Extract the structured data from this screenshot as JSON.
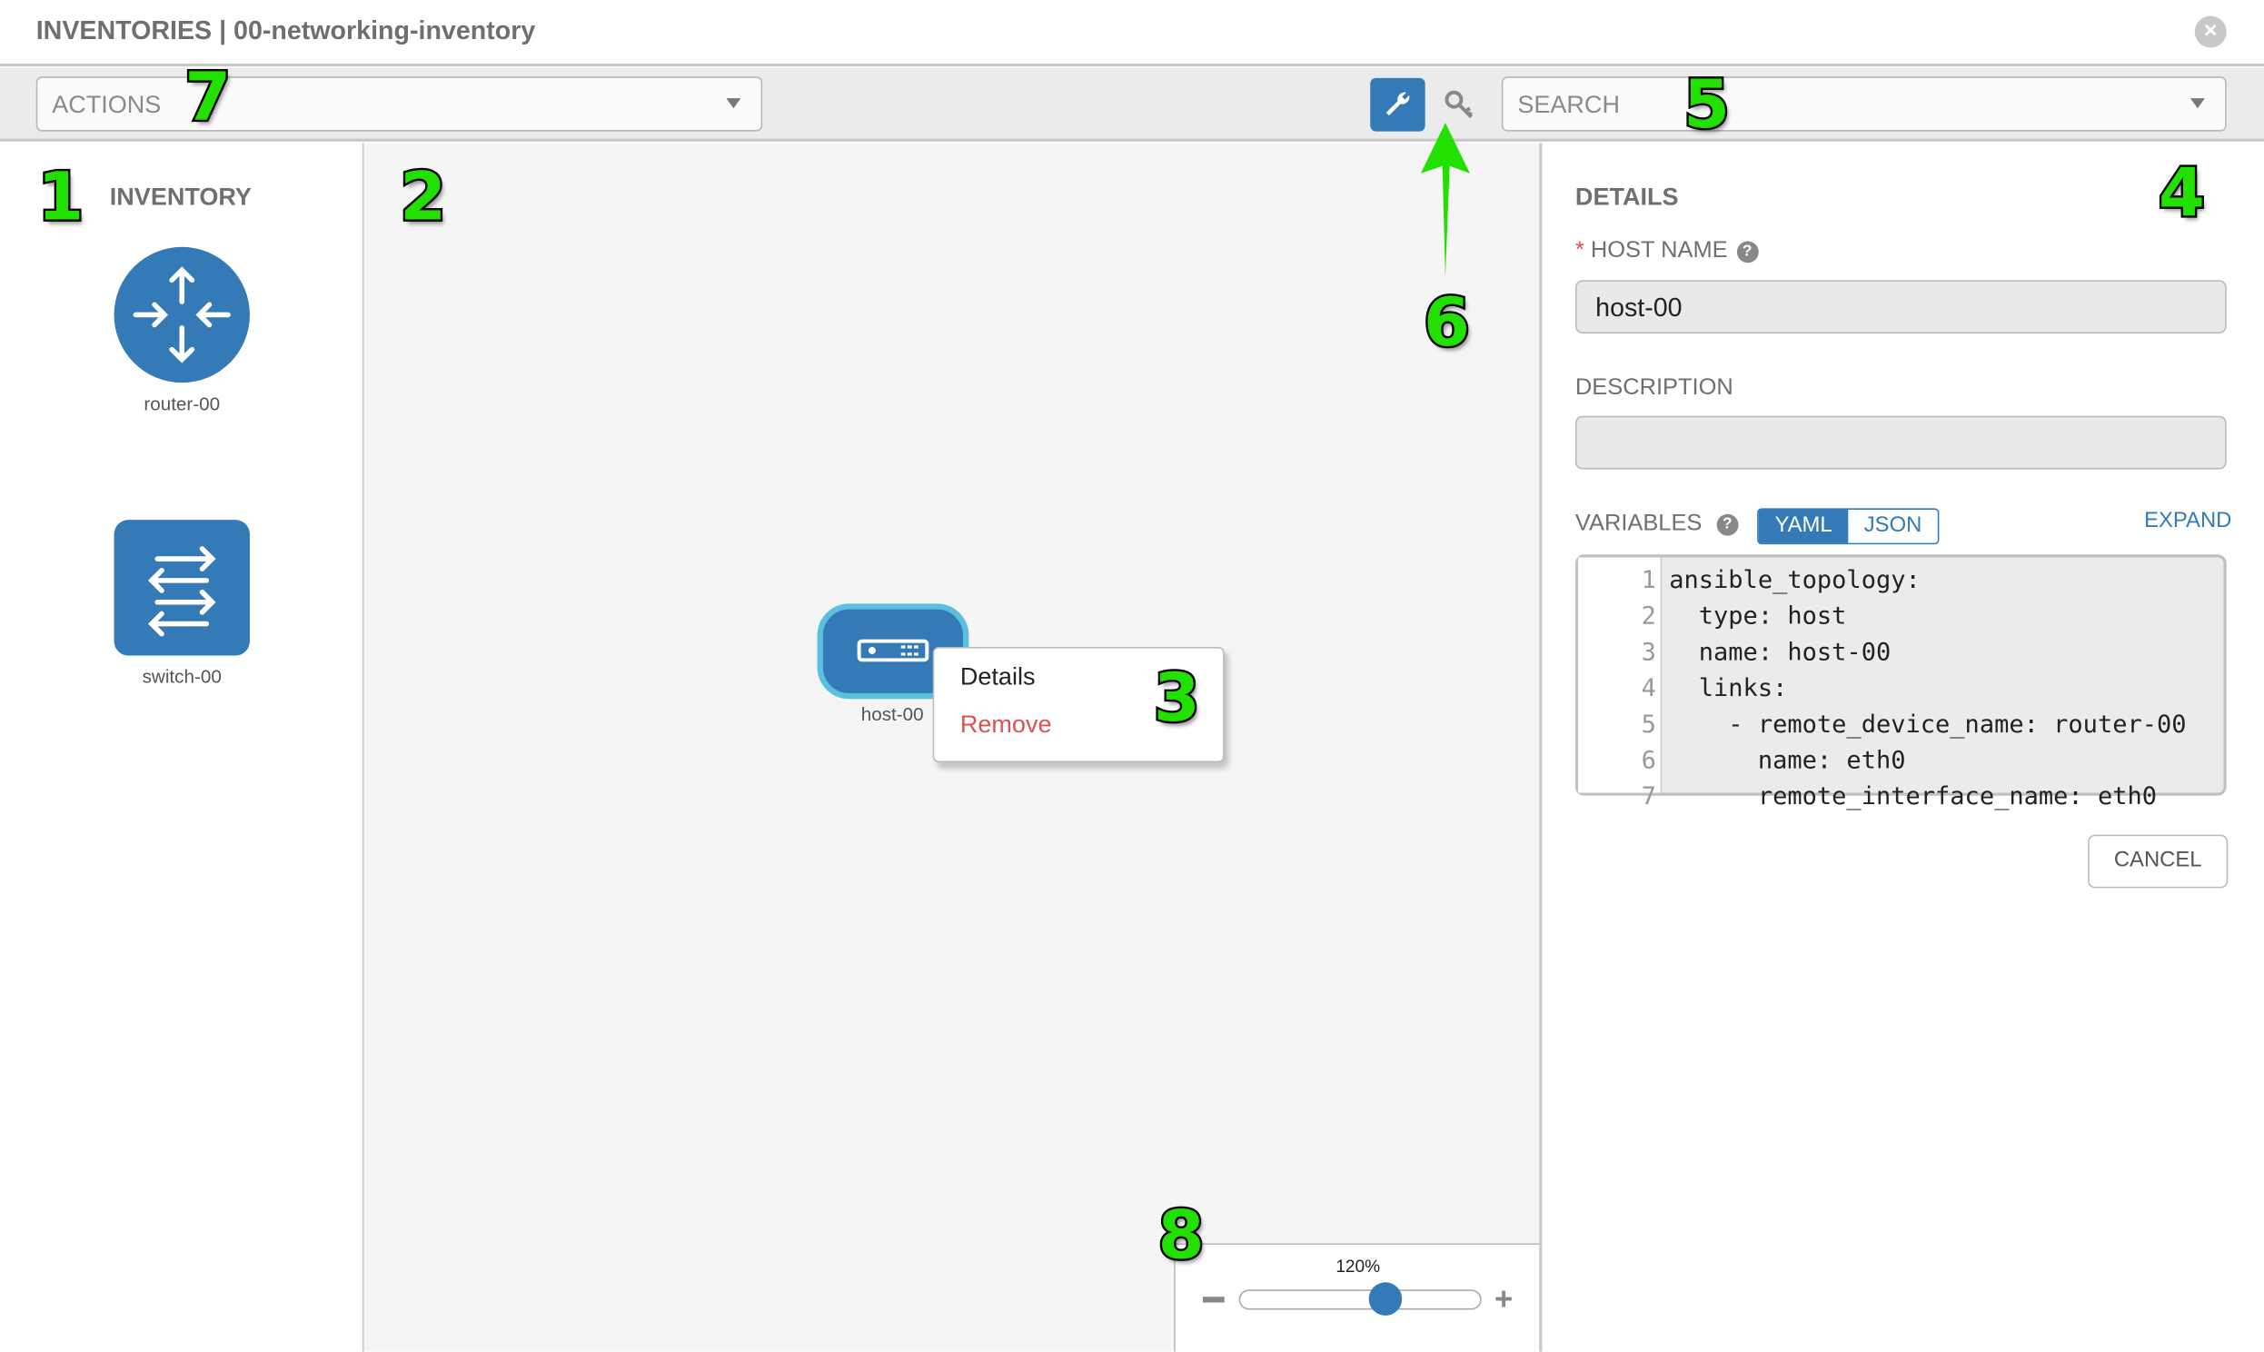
{
  "header": {
    "title": "INVENTORIES | 00-networking-inventory",
    "close_icon": "close-circle-icon"
  },
  "toolbar": {
    "actions_placeholder": "ACTIONS",
    "search_placeholder": "SEARCH",
    "wrench_icon": "wrench-icon",
    "key_icon": "key-icon",
    "accent": "#337ab7"
  },
  "inventory": {
    "title": "INVENTORY",
    "items": [
      {
        "label": "router-00",
        "icon": "router-icon"
      },
      {
        "label": "switch-00",
        "icon": "switch-icon"
      }
    ]
  },
  "canvas": {
    "node": {
      "label": "host-00",
      "icon": "host-server-icon",
      "selected_border": "#5bc0de"
    },
    "context_menu": {
      "details": "Details",
      "remove": "Remove",
      "remove_color": "#d9534f"
    },
    "zoom": {
      "label": "120%",
      "level_fraction": 0.6,
      "minus": "−",
      "plus": "+"
    }
  },
  "details": {
    "title": "DETAILS",
    "host_name_label": "HOST NAME",
    "required_mark": "*",
    "host_name_value": "host-00",
    "description_label": "DESCRIPTION",
    "description_value": "",
    "variables_label": "VARIABLES",
    "yaml": "YAML",
    "json": "JSON",
    "expand": "EXPAND",
    "code_lines": [
      {
        "n": "1",
        "text": "ansible_topology:"
      },
      {
        "n": "2",
        "text": "  type: host"
      },
      {
        "n": "3",
        "text": "  name: host-00"
      },
      {
        "n": "4",
        "text": "  links:"
      },
      {
        "n": "5",
        "text": "    - remote_device_name: router-00"
      },
      {
        "n": "6",
        "text": "      name: eth0"
      },
      {
        "n": "7",
        "text": "      remote_interface_name: eth0"
      }
    ],
    "cancel": "CANCEL"
  },
  "annotations": [
    "1",
    "2",
    "3",
    "4",
    "5",
    "6",
    "7",
    "8"
  ]
}
